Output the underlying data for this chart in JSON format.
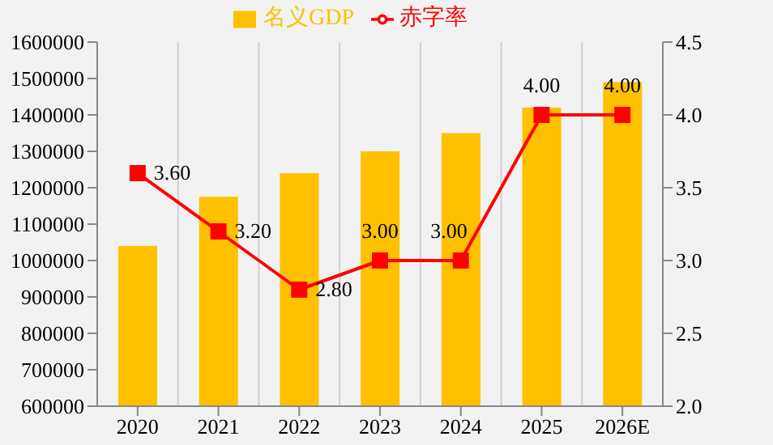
{
  "chart_data": {
    "type": "bar",
    "categories": [
      "2020",
      "2021",
      "2022",
      "2023",
      "2024",
      "2025",
      "2026E"
    ],
    "series": [
      {
        "name": "名义GDP",
        "color": "#ffc000",
        "values": [
          1040000,
          1175000,
          1240000,
          1300000,
          1350000,
          1420000,
          1490000
        ]
      },
      {
        "name": "赤字率",
        "type": "line",
        "axis": "y2",
        "color": "#ff0000",
        "marker": "square",
        "values": [
          3.6,
          3.2,
          2.8,
          3.0,
          3.0,
          4.0,
          4.0
        ],
        "value_labels": [
          "3.60",
          "3.20",
          "2.80",
          "3.00",
          "3.00",
          "4.00",
          "4.00"
        ]
      }
    ],
    "ylim": [
      600000,
      1600000
    ],
    "yticks": [
      600000,
      700000,
      800000,
      900000,
      1000000,
      1100000,
      1200000,
      1300000,
      1400000,
      1500000,
      1600000
    ],
    "y2lim": [
      2.0,
      4.5
    ],
    "y2ticks": [
      {
        "value": 2,
        "label": "2.0"
      },
      {
        "value": 2.5,
        "label": "2.5"
      },
      {
        "value": 3,
        "label": "3.0"
      },
      {
        "value": 3.5,
        "label": "3.5"
      },
      {
        "value": 4,
        "label": "4.0"
      },
      {
        "value": 4.5,
        "label": "4.5"
      }
    ],
    "grid": "x",
    "legend": "top"
  }
}
